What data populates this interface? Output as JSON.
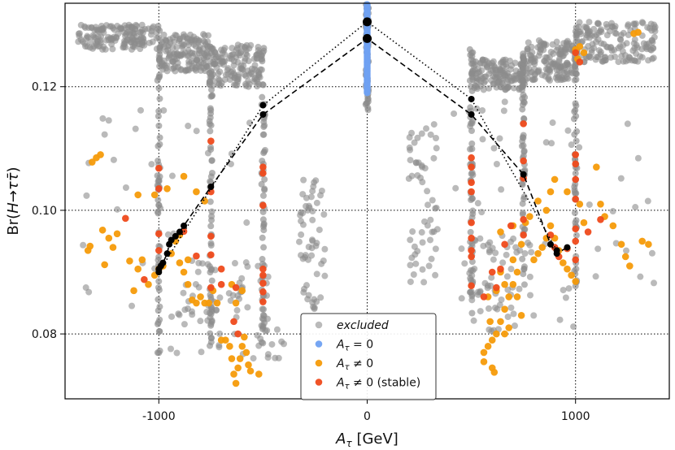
{
  "chart_data": {
    "type": "scatter",
    "xlabel": "A_τ [GeV]",
    "ylabel": "Br(H→ττ̄)",
    "xlim": [
      -1450,
      1450
    ],
    "ylim": [
      0.0695,
      0.1335
    ],
    "x_ticks": [
      -1000,
      0,
      1000
    ],
    "x_tick_labels": [
      "-1000",
      "0",
      "1000"
    ],
    "y_ticks": [
      0.08,
      0.1,
      0.12
    ],
    "y_tick_labels": [
      "0.08",
      "0.10",
      "0.12"
    ],
    "grid": "dotted",
    "legend": {
      "position": "bottom-center",
      "entries": [
        {
          "key": "excluded",
          "label": "excluded",
          "italic": true,
          "color": "#8c8c8c"
        },
        {
          "key": "A0",
          "label": "A_τ = 0",
          "color": "#6fa1f2"
        },
        {
          "key": "Aneq0",
          "label": "A_τ ≠ 0",
          "color": "#f59b0a"
        },
        {
          "key": "stable",
          "label": "A_τ ≠ 0 (stable)",
          "color": "#ef4a1b"
        }
      ]
    },
    "series": [
      {
        "name": "excluded",
        "color": "#8c8c8c",
        "bands": [
          {
            "x0": -1390,
            "x1": -1000,
            "y0": 0.126,
            "y1": 0.13
          },
          {
            "x0": -1000,
            "x1": -760,
            "y0": 0.1225,
            "y1": 0.1285
          },
          {
            "x0": -760,
            "x1": -500,
            "y0": 0.12,
            "y1": 0.127
          },
          {
            "x0": 500,
            "x1": 760,
            "y0": 0.1195,
            "y1": 0.1245
          },
          {
            "x0": 760,
            "x1": 1000,
            "y0": 0.121,
            "y1": 0.1275
          },
          {
            "x0": 1000,
            "x1": 1390,
            "y0": 0.124,
            "y1": 0.1305
          }
        ],
        "columns": [
          {
            "x": -1000,
            "y0": 0.076,
            "y1": 0.1305
          },
          {
            "x": -750,
            "y0": 0.078,
            "y1": 0.127
          },
          {
            "x": -500,
            "y0": 0.0785,
            "y1": 0.127
          },
          {
            "x": 0,
            "y0": 0.116,
            "y1": 0.1335
          },
          {
            "x": 500,
            "y0": 0.083,
            "y1": 0.127
          },
          {
            "x": 750,
            "y0": 0.087,
            "y1": 0.1255
          },
          {
            "x": 1000,
            "y0": 0.087,
            "y1": 0.1305
          }
        ],
        "scatter_regions": [
          {
            "x0": -1370,
            "x1": -450,
            "y0": 0.076,
            "y1": 0.118
          },
          {
            "x0": -950,
            "x1": -400,
            "y0": 0.076,
            "y1": 0.092
          },
          {
            "x0": -330,
            "x1": -200,
            "y0": 0.084,
            "y1": 0.105
          },
          {
            "x0": 200,
            "x1": 340,
            "y0": 0.088,
            "y1": 0.114
          },
          {
            "x0": 360,
            "x1": 1400,
            "y0": 0.081,
            "y1": 0.118
          },
          {
            "x0": 480,
            "x1": 800,
            "y0": 0.08,
            "y1": 0.096
          }
        ]
      },
      {
        "name": "A_τ = 0",
        "color": "#6fa1f2",
        "x": 0,
        "y_range": [
          0.119,
          0.1333
        ]
      },
      {
        "name": "A_τ ≠ 0",
        "color": "#f59b0a",
        "points": [
          [
            -1300,
            0.1085
          ],
          [
            -1320,
            0.1078
          ],
          [
            -1280,
            0.109
          ],
          [
            -1330,
            0.0942
          ],
          [
            -1340,
            0.0935
          ],
          [
            -1270,
            0.0968
          ],
          [
            -1260,
            0.0912
          ],
          [
            -1240,
            0.0955
          ],
          [
            -1220,
            0.094
          ],
          [
            -1200,
            0.0962
          ],
          [
            -1140,
            0.0918
          ],
          [
            -1100,
            0.0905
          ],
          [
            -1080,
            0.092
          ],
          [
            -1050,
            0.088
          ],
          [
            -1020,
            0.0895
          ],
          [
            -1000,
            0.0905
          ],
          [
            -980,
            0.091
          ],
          [
            -940,
            0.093
          ],
          [
            -920,
            0.095
          ],
          [
            -900,
            0.096
          ],
          [
            -880,
            0.09
          ],
          [
            -860,
            0.088
          ],
          [
            -840,
            0.0855
          ],
          [
            -820,
            0.085
          ],
          [
            -800,
            0.086
          ],
          [
            -780,
            0.085
          ],
          [
            -760,
            0.085
          ],
          [
            -740,
            0.087
          ],
          [
            -1100,
            0.1025
          ],
          [
            -1020,
            0.1025
          ],
          [
            -960,
            0.1035
          ],
          [
            -880,
            0.1055
          ],
          [
            -820,
            0.103
          ],
          [
            -780,
            0.1015
          ],
          [
            -720,
            0.085
          ],
          [
            -700,
            0.079
          ],
          [
            -680,
            0.079
          ],
          [
            -660,
            0.078
          ],
          [
            -650,
            0.076
          ],
          [
            -640,
            0.0735
          ],
          [
            -630,
            0.072
          ],
          [
            -620,
            0.0745
          ],
          [
            -610,
            0.076
          ],
          [
            -600,
            0.078
          ],
          [
            -590,
            0.0795
          ],
          [
            -580,
            0.077
          ],
          [
            -570,
            0.075
          ],
          [
            -560,
            0.074
          ],
          [
            -520,
            0.0735
          ],
          [
            -630,
            0.085
          ],
          [
            -650,
            0.088
          ],
          [
            -600,
            0.087
          ],
          [
            -900,
            0.0915
          ],
          [
            -860,
            0.092
          ],
          [
            -1120,
            0.087
          ],
          [
            1100,
            0.107
          ],
          [
            1120,
            0.101
          ],
          [
            1220,
            0.0945
          ],
          [
            1240,
            0.0925
          ],
          [
            1260,
            0.091
          ],
          [
            1280,
            0.1286
          ],
          [
            1300,
            0.1288
          ],
          [
            1320,
            0.095
          ],
          [
            1350,
            0.0945
          ],
          [
            1040,
            0.098
          ],
          [
            1020,
            0.101
          ],
          [
            1000,
            0.0885
          ],
          [
            980,
            0.0895
          ],
          [
            960,
            0.0905
          ],
          [
            940,
            0.0915
          ],
          [
            920,
            0.0935
          ],
          [
            900,
            0.0955
          ],
          [
            880,
            0.0975
          ],
          [
            860,
            0.0955
          ],
          [
            840,
            0.094
          ],
          [
            820,
            0.093
          ],
          [
            800,
            0.092
          ],
          [
            780,
            0.099
          ],
          [
            760,
            0.098
          ],
          [
            740,
            0.0945
          ],
          [
            720,
            0.09
          ],
          [
            700,
            0.088
          ],
          [
            680,
            0.086
          ],
          [
            660,
            0.084
          ],
          [
            640,
            0.082
          ],
          [
            620,
            0.08
          ],
          [
            600,
            0.079
          ],
          [
            580,
            0.078
          ],
          [
            560,
            0.077
          ],
          [
            600,
            0.0745
          ],
          [
            610,
            0.0738
          ],
          [
            560,
            0.0755
          ],
          [
            580,
            0.086
          ],
          [
            620,
            0.087
          ],
          [
            660,
            0.088
          ],
          [
            700,
            0.092
          ],
          [
            640,
            0.09
          ],
          [
            1000,
            0.126
          ],
          [
            1020,
            0.1265
          ],
          [
            1040,
            0.1255
          ],
          [
            1010,
            0.1245
          ],
          [
            900,
            0.105
          ],
          [
            880,
            0.103
          ],
          [
            860,
            0.1
          ],
          [
            820,
            0.1015
          ],
          [
            960,
            0.103
          ],
          [
            1140,
            0.099
          ],
          [
            1180,
            0.0975
          ],
          [
            640,
            0.0965
          ],
          [
            700,
            0.0975
          ],
          [
            720,
            0.086
          ],
          [
            740,
            0.083
          ],
          [
            680,
            0.081
          ],
          [
            590,
            0.082
          ],
          [
            660,
            0.08
          ]
        ]
      },
      {
        "name": "A_τ ≠ 0 (stable)",
        "color": "#ef4a1b",
        "points": [
          [
            -1000,
            0.1068
          ],
          [
            -1000,
            0.1035
          ],
          [
            -1000,
            0.0962
          ],
          [
            -1000,
            0.0935
          ],
          [
            -750,
            0.1112
          ],
          [
            -750,
            0.103
          ],
          [
            -750,
            0.0958
          ],
          [
            -750,
            0.0928
          ],
          [
            -750,
            0.0875
          ],
          [
            -500,
            0.107
          ],
          [
            -500,
            0.106
          ],
          [
            -500,
            0.1008
          ],
          [
            -500,
            0.0905
          ],
          [
            -500,
            0.0895
          ],
          [
            -500,
            0.0882
          ],
          [
            -500,
            0.0868
          ],
          [
            -500,
            0.0852
          ],
          [
            -1160,
            0.0987
          ],
          [
            -1070,
            0.0888
          ],
          [
            -880,
            0.0966
          ],
          [
            -820,
            0.0926
          ],
          [
            -630,
            0.0875
          ],
          [
            -640,
            0.082
          ],
          [
            -620,
            0.08
          ],
          [
            -700,
            0.0905
          ],
          [
            -700,
            0.088
          ],
          [
            500,
            0.1085
          ],
          [
            500,
            0.107
          ],
          [
            500,
            0.1045
          ],
          [
            500,
            0.103
          ],
          [
            500,
            0.098
          ],
          [
            500,
            0.0955
          ],
          [
            500,
            0.0935
          ],
          [
            500,
            0.0925
          ],
          [
            500,
            0.0878
          ],
          [
            750,
            0.114
          ],
          [
            750,
            0.108
          ],
          [
            750,
            0.1052
          ],
          [
            750,
            0.0985
          ],
          [
            750,
            0.096
          ],
          [
            1000,
            0.109
          ],
          [
            1000,
            0.1075
          ],
          [
            1000,
            0.105
          ],
          [
            1000,
            0.1018
          ],
          [
            1000,
            0.097
          ],
          [
            1000,
            0.095
          ],
          [
            1000,
            0.092
          ],
          [
            690,
            0.0975
          ],
          [
            660,
            0.0945
          ],
          [
            600,
            0.09
          ],
          [
            560,
            0.086
          ],
          [
            620,
            0.0875
          ],
          [
            880,
            0.096
          ],
          [
            900,
            0.094
          ],
          [
            920,
            0.0925
          ],
          [
            960,
            0.0938
          ],
          [
            1120,
            0.0985
          ],
          [
            1000,
            0.1255
          ],
          [
            1020,
            0.124
          ],
          [
            1060,
            0.0965
          ],
          [
            640,
            0.0905
          ]
        ]
      },
      {
        "name": "dotted-curve",
        "style": "dotted",
        "color": "#000000",
        "x": [
          -1000,
          -500,
          0,
          500,
          910
        ],
        "y": [
          0.09,
          0.117,
          0.1305,
          0.118,
          0.0935
        ]
      },
      {
        "name": "dashed-curve",
        "style": "dashed",
        "color": "#000000",
        "x": [
          -1000,
          -990,
          -980,
          -960,
          -950,
          -940,
          -920,
          -900,
          -880,
          -750,
          -500,
          0,
          500,
          750,
          880,
          910,
          960
        ],
        "y": [
          0.0905,
          0.091,
          0.0915,
          0.093,
          0.0945,
          0.0952,
          0.0958,
          0.0965,
          0.0975,
          0.1038,
          0.1155,
          0.1278,
          0.1155,
          0.1058,
          0.0945,
          0.093,
          0.094
        ]
      }
    ]
  }
}
